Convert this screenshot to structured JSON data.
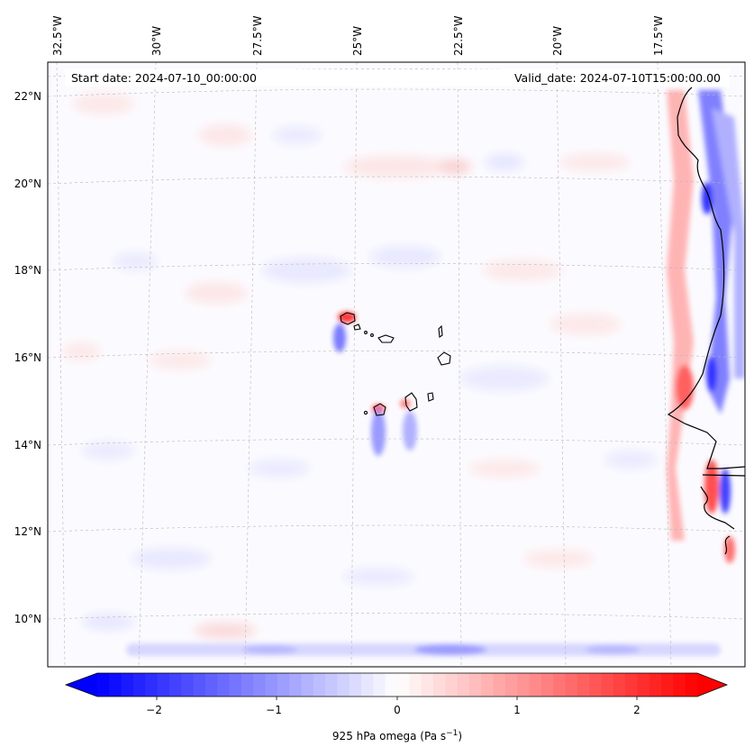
{
  "map": {
    "start_date": "Start date: 2024-07-10_00:00:00",
    "valid_date": "Valid_date: 2024-07-10T15:00:00.00",
    "lon_labels": [
      "32.5°W",
      "30°W",
      "27.5°W",
      "25°W",
      "22.5°W",
      "20°W",
      "17.5°W"
    ],
    "lat_labels": [
      "22°N",
      "20°N",
      "18°N",
      "16°N",
      "14°N",
      "12°N",
      "10°N"
    ],
    "gridlines": true
  },
  "colorbar": {
    "ticks": [
      "−2",
      "−1",
      "0",
      "1",
      "2"
    ],
    "label": "925 hPa omega (Pa s",
    "label_sup": "−1",
    "label_end": ")",
    "range": [
      -2.5,
      2.5
    ],
    "colors": {
      "negative": "#0000ff",
      "zero": "#ffffff",
      "positive": "#ff0000"
    }
  }
}
